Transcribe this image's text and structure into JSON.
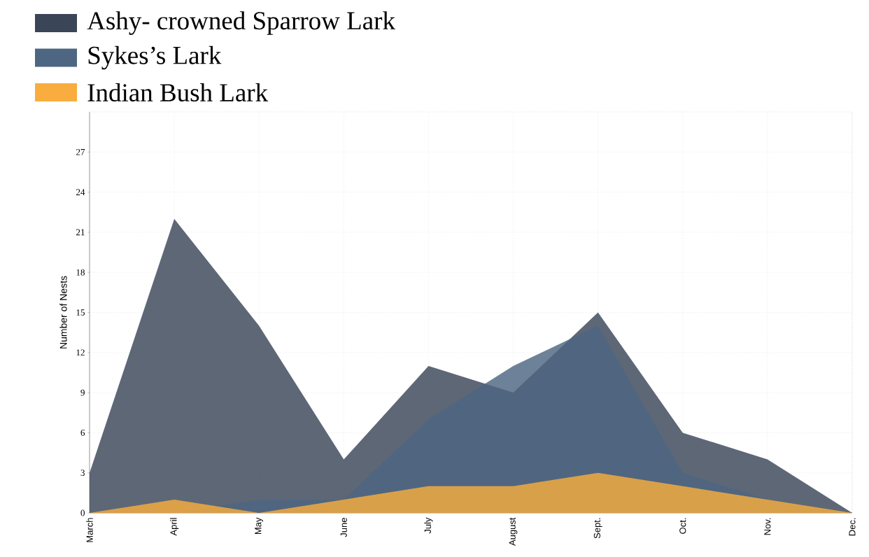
{
  "chart_data": {
    "type": "area",
    "ylabel": "Number of Nests",
    "categories": [
      "March",
      "April",
      "May",
      "June",
      "July",
      "August",
      "Sept.",
      "Oct.",
      "Nov.",
      "Dec."
    ],
    "series": [
      {
        "name": "Ashy- crowned Sparrow Lark",
        "color": "#3a4558",
        "values": [
          3,
          22,
          14,
          4,
          11,
          9,
          15,
          6,
          4,
          0
        ]
      },
      {
        "name": "Sykes’s Lark",
        "color": "#4d6682",
        "values": [
          0,
          0,
          1,
          1,
          7,
          11,
          14,
          3,
          1,
          0
        ]
      },
      {
        "name": "Indian Bush Lark",
        "color": "#f8ad3e",
        "values": [
          0,
          1,
          0,
          1,
          2,
          2,
          3,
          2,
          1,
          0
        ]
      }
    ],
    "ylim": [
      0,
      30
    ],
    "yticks": [
      0,
      3,
      6,
      9,
      12,
      15,
      18,
      21,
      24,
      27
    ],
    "grid": true,
    "legend": "top"
  }
}
